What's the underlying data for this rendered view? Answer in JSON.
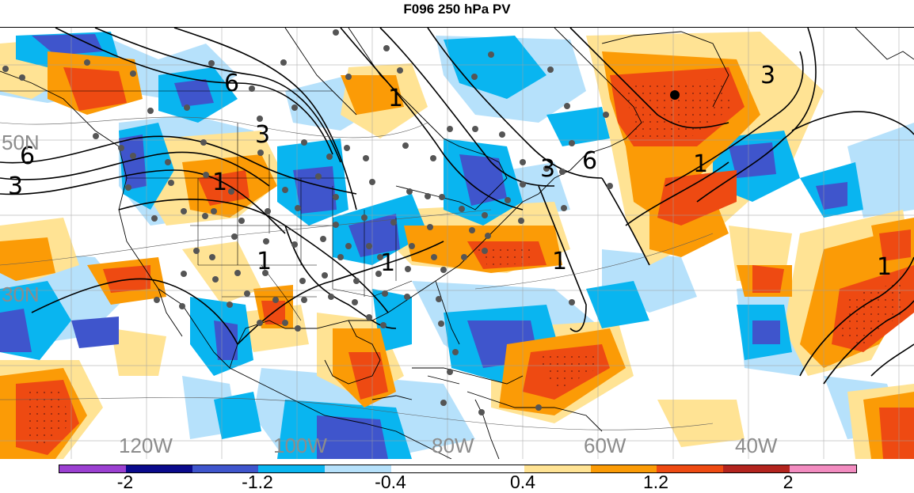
{
  "title": "F096 250 hPa PV",
  "longitude_labels": [
    "120W",
    "100W",
    "80W",
    "60W",
    "40W"
  ],
  "latitude_labels": [
    "50N",
    "30N"
  ],
  "contour_labels": [
    "6",
    "6",
    "3",
    "3",
    "1",
    "1",
    "1",
    "1",
    "3",
    "6",
    "1",
    "1",
    "3",
    "1"
  ],
  "colorbar": {
    "colors": [
      "#9b40d1",
      "#0a0a8c",
      "#3f55cc",
      "#09b5f0",
      "#b6e1fb",
      "#ffffff",
      "#ffffff",
      "#ffe394",
      "#fb9b06",
      "#ee4a12",
      "#b3241e",
      "#f28cc0"
    ],
    "tick_labels": [
      "-2",
      "-1.2",
      "-0.4",
      "0.4",
      "1.2",
      "2"
    ]
  },
  "colors": {
    "neg_strong": "#3f55cc",
    "neg": "#09b5f0",
    "neg_weak": "#b6e1fb",
    "pos_weak": "#ffe394",
    "pos": "#fb9b06",
    "pos_strong": "#ee4a12",
    "land_outline": "#000000",
    "station_dot": "#555555"
  }
}
